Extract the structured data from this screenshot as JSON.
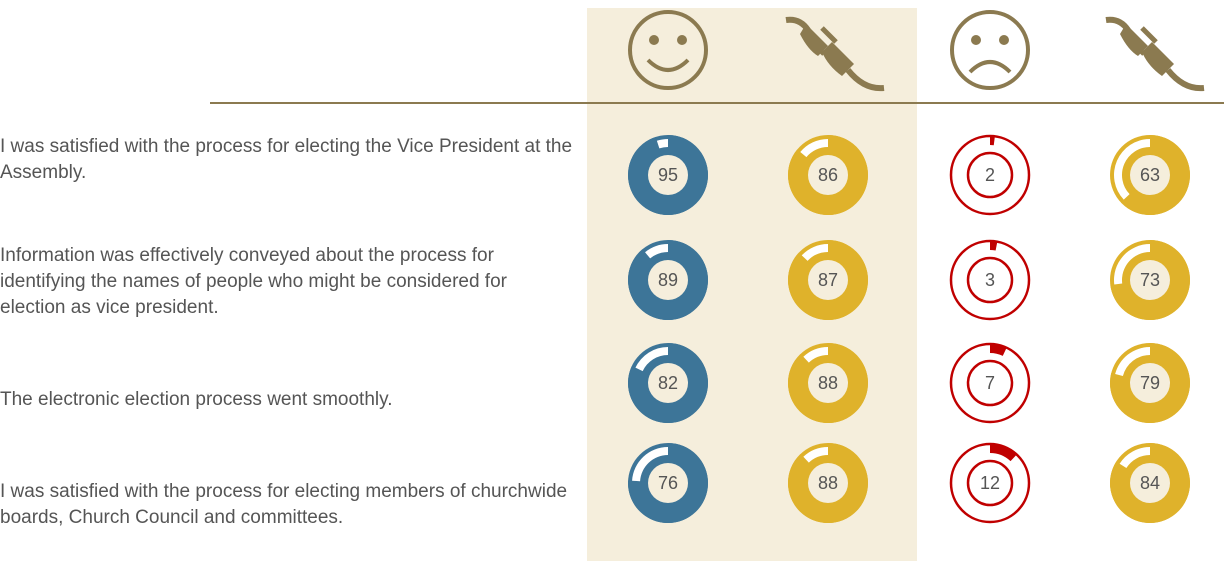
{
  "chart_data": {
    "type": "donut",
    "categories": [
      "I was satisfied with the process for electing the Vice President at the Assembly.",
      "Information was effectively conveyed about the process for identifying the names of people who might be considered for election as vice president.",
      "The electronic election process went smoothly.",
      "I was satisfied with the process for electing members of churchwide boards, Church Council and committees."
    ],
    "series": [
      {
        "color": "#3d7598",
        "style": "solid",
        "values": [
          95,
          89,
          82,
          76
        ]
      },
      {
        "color": "#dfb22b",
        "style": "solid",
        "values": [
          86,
          87,
          88,
          88
        ]
      },
      {
        "color": "#c00000",
        "style": "outline",
        "values": [
          2,
          3,
          7,
          12
        ]
      },
      {
        "color": "#dfb22b",
        "style": "solid",
        "values": [
          63,
          73,
          79,
          84
        ]
      }
    ],
    "ylim": [
      0,
      100
    ]
  }
}
